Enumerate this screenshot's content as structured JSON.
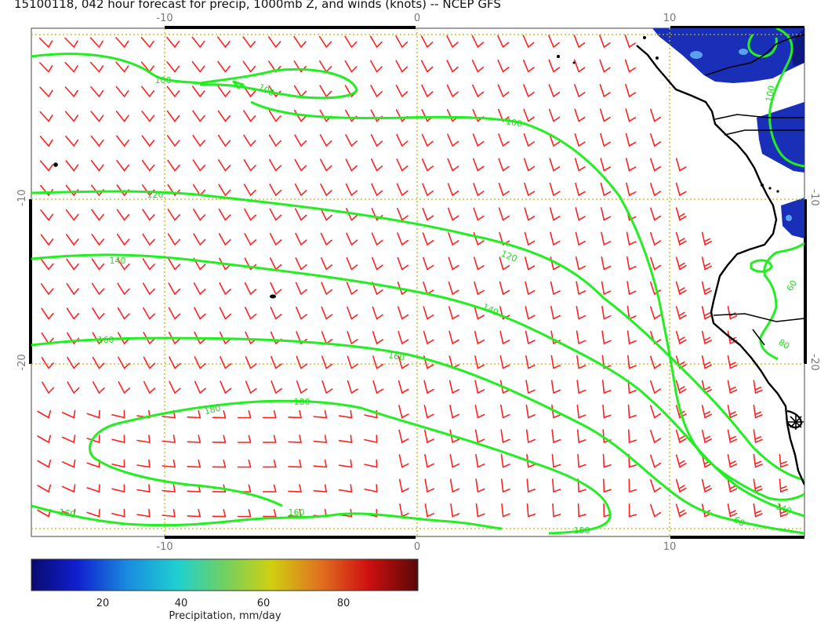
{
  "title": "15100118, 042 hour forecast for precip, 1000mb Z, and winds (knots) -- NCEP GFS",
  "map": {
    "lon_ticks": [
      "-10",
      "0",
      "10"
    ],
    "lat_ticks": [
      "-10",
      "-20"
    ],
    "grid": "dotted",
    "grid_color": "#c8b400",
    "wind_barb_color": "#ff2020",
    "contour_color": "#22ee22",
    "precip_color": "#1a2fb8"
  },
  "contours": {
    "labels": [
      "100",
      "100",
      "100",
      "120",
      "120",
      "140",
      "140",
      "160",
      "160",
      "180",
      "180",
      "180",
      "160",
      "160",
      "140",
      "80",
      "60",
      "60",
      "100"
    ]
  },
  "colorbar": {
    "label": "Precipitation, mm/day",
    "ticks": [
      "20",
      "40",
      "60",
      "80"
    ]
  }
}
